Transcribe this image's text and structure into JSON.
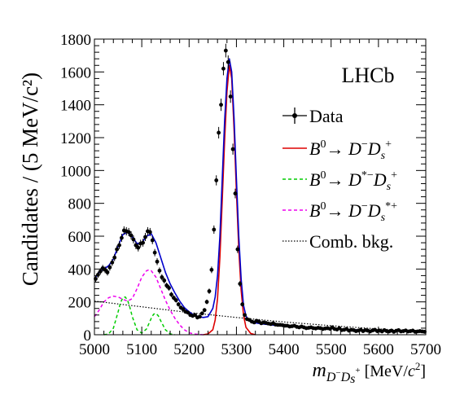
{
  "chart_data": {
    "type": "scatter",
    "ylabel": "Candidates / (5 MeV/c²)",
    "xlim": [
      5000,
      5700
    ],
    "ylim": [
      0,
      1800
    ],
    "x_ticks": [
      5000,
      5100,
      5200,
      5300,
      5400,
      5500,
      5600,
      5700
    ],
    "y_ticks": [
      0,
      200,
      400,
      600,
      800,
      1000,
      1200,
      1400,
      1600,
      1800
    ],
    "x_tick_labels": [
      "5000",
      "5100",
      "5200",
      "5300",
      "5400",
      "5500",
      "5600",
      "5700"
    ],
    "y_tick_labels": [
      "0",
      "200",
      "400",
      "600",
      "800",
      "1000",
      "1200",
      "1400",
      "1600",
      "1800"
    ],
    "annotation": "LHCb",
    "legend_position": "top-right",
    "legend": {
      "data": "Data",
      "comb": "Comb. bkg."
    },
    "colors": {
      "data": "#000000",
      "total_fit": "#0000cc",
      "signal": "#dd0000",
      "dstar_dsplus": "#00cc00",
      "d_dsstar": "#ee00ee",
      "comb": "#000000"
    },
    "points": {
      "x": [
        5002.5,
        5007.5,
        5012.5,
        5017.5,
        5022.5,
        5027.5,
        5032.5,
        5037.5,
        5042.5,
        5047.5,
        5052.5,
        5057.5,
        5062.5,
        5067.5,
        5072.5,
        5077.5,
        5082.5,
        5087.5,
        5092.5,
        5097.5,
        5102.5,
        5107.5,
        5112.5,
        5117.5,
        5122.5,
        5127.5,
        5132.5,
        5137.5,
        5142.5,
        5147.5,
        5152.5,
        5157.5,
        5162.5,
        5167.5,
        5172.5,
        5177.5,
        5182.5,
        5187.5,
        5192.5,
        5197.5,
        5202.5,
        5207.5,
        5212.5,
        5217.5,
        5222.5,
        5227.5,
        5232.5,
        5237.5,
        5242.5,
        5247.5,
        5252.5,
        5257.5,
        5262.5,
        5267.5,
        5272.5,
        5277.5,
        5282.5,
        5287.5,
        5292.5,
        5297.5,
        5302.5,
        5307.5,
        5312.5,
        5317.5,
        5322.5,
        5327.5,
        5332.5,
        5337.5,
        5342.5,
        5347.5,
        5352.5,
        5357.5,
        5362.5,
        5367.5,
        5372.5,
        5377.5,
        5382.5,
        5387.5,
        5392.5,
        5397.5,
        5402.5,
        5407.5,
        5412.5,
        5417.5,
        5422.5,
        5427.5,
        5432.5,
        5437.5,
        5442.5,
        5447.5,
        5452.5,
        5457.5,
        5462.5,
        5467.5,
        5472.5,
        5477.5,
        5482.5,
        5487.5,
        5492.5,
        5497.5,
        5502.5,
        5507.5,
        5512.5,
        5517.5,
        5522.5,
        5527.5,
        5532.5,
        5537.5,
        5542.5,
        5547.5,
        5552.5,
        5557.5,
        5562.5,
        5567.5,
        5572.5,
        5577.5,
        5582.5,
        5587.5,
        5592.5,
        5597.5,
        5602.5,
        5607.5,
        5612.5,
        5617.5,
        5622.5,
        5627.5,
        5632.5,
        5637.5,
        5642.5,
        5647.5,
        5652.5,
        5657.5,
        5662.5,
        5667.5,
        5672.5,
        5677.5,
        5682.5,
        5687.5,
        5692.5,
        5697.5
      ],
      "y": [
        340,
        365,
        385,
        405,
        395,
        380,
        410,
        440,
        470,
        520,
        545,
        590,
        635,
        630,
        625,
        605,
        580,
        545,
        530,
        555,
        560,
        595,
        630,
        625,
        575,
        500,
        445,
        390,
        350,
        330,
        300,
        285,
        245,
        225,
        210,
        185,
        165,
        155,
        140,
        135,
        120,
        115,
        120,
        105,
        110,
        130,
        150,
        200,
        265,
        395,
        640,
        940,
        1230,
        1400,
        1620,
        1730,
        1660,
        1450,
        1130,
        860,
        520,
        310,
        185,
        120,
        95,
        90,
        80,
        75,
        85,
        80,
        70,
        75,
        72,
        68,
        65,
        70,
        62,
        60,
        60,
        58,
        55,
        55,
        50,
        52,
        55,
        48,
        45,
        50,
        45,
        40,
        42,
        45,
        40,
        38,
        42,
        40,
        35,
        38,
        40,
        36,
        45,
        35,
        32,
        40,
        28,
        30,
        35,
        25,
        30,
        28,
        22,
        25,
        30,
        22,
        28,
        25,
        20,
        26,
        30,
        22,
        25,
        20,
        28,
        22,
        20,
        25,
        18,
        24,
        28,
        20,
        22,
        26,
        20,
        22,
        25,
        18,
        20,
        22,
        20,
        18
      ]
    },
    "curves": {
      "total_fit": {
        "x": [
          5000,
          5010,
          5020,
          5030,
          5040,
          5050,
          5060,
          5070,
          5080,
          5090,
          5100,
          5110,
          5120,
          5130,
          5140,
          5150,
          5160,
          5170,
          5180,
          5190,
          5200,
          5210,
          5220,
          5230,
          5240,
          5250,
          5255,
          5260,
          5265,
          5270,
          5275,
          5280,
          5285,
          5290,
          5295,
          5300,
          5305,
          5310,
          5315,
          5320,
          5325,
          5330,
          5340,
          5350,
          5360,
          5380,
          5400,
          5450,
          5500,
          5550,
          5600,
          5650,
          5700
        ],
        "y": [
          340,
          380,
          400,
          420,
          460,
          540,
          610,
          625,
          595,
          555,
          560,
          600,
          615,
          560,
          470,
          380,
          310,
          255,
          205,
          165,
          140,
          120,
          110,
          105,
          110,
          160,
          230,
          360,
          600,
          950,
          1300,
          1560,
          1680,
          1600,
          1320,
          950,
          600,
          340,
          180,
          115,
          90,
          80,
          72,
          68,
          64,
          58,
          52,
          44,
          37,
          30,
          25,
          22,
          20
        ]
      },
      "signal": {
        "x": [
          5230,
          5240,
          5250,
          5255,
          5260,
          5265,
          5270,
          5275,
          5280,
          5285,
          5290,
          5295,
          5300,
          5305,
          5310,
          5315,
          5320,
          5330,
          5340
        ],
        "y": [
          0,
          5,
          30,
          90,
          220,
          470,
          820,
          1180,
          1480,
          1640,
          1560,
          1250,
          870,
          520,
          270,
          120,
          45,
          8,
          0
        ]
      },
      "dstar_dsplus": {
        "x": [
          5020,
          5030,
          5040,
          5050,
          5055,
          5060,
          5065,
          5070,
          5075,
          5080,
          5090,
          5100,
          5110,
          5120,
          5125,
          5130,
          5135,
          5140,
          5150,
          5160,
          5170
        ],
        "y": [
          0,
          5,
          40,
          140,
          195,
          225,
          230,
          210,
          165,
          110,
          30,
          10,
          35,
          100,
          125,
          130,
          115,
          85,
          30,
          5,
          0
        ]
      },
      "d_dsstar": {
        "x": [
          5000,
          5010,
          5020,
          5030,
          5040,
          5050,
          5060,
          5070,
          5080,
          5090,
          5100,
          5110,
          5115,
          5120,
          5130,
          5140,
          5150,
          5160,
          5170,
          5180,
          5190,
          5200,
          5210,
          5220,
          5230
        ],
        "y": [
          110,
          150,
          200,
          225,
          235,
          230,
          215,
          205,
          220,
          280,
          350,
          390,
          395,
          390,
          350,
          280,
          210,
          150,
          100,
          60,
          30,
          12,
          5,
          2,
          0
        ]
      },
      "comb": {
        "x": [
          5000,
          5100,
          5200,
          5300,
          5400,
          5500,
          5600,
          5700
        ],
        "y": [
          205,
          170,
          135,
          105,
          78,
          55,
          35,
          20
        ]
      }
    }
  }
}
